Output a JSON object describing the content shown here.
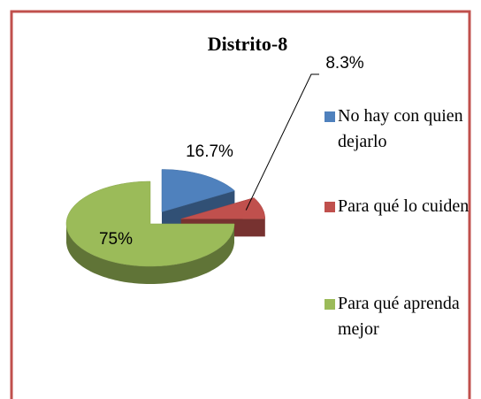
{
  "chart_data": {
    "type": "pie",
    "title": "Distrito-8",
    "categories": [
      "No hay con quien dejarlo",
      "Para qué lo cuiden",
      "Para qué aprenda mejor"
    ],
    "values": [
      16.7,
      8.3,
      75
    ],
    "value_labels": [
      "16.7%",
      "8.3%",
      "75%"
    ],
    "colors": [
      "#4f81bd",
      "#c0504d",
      "#9bbb59"
    ]
  }
}
